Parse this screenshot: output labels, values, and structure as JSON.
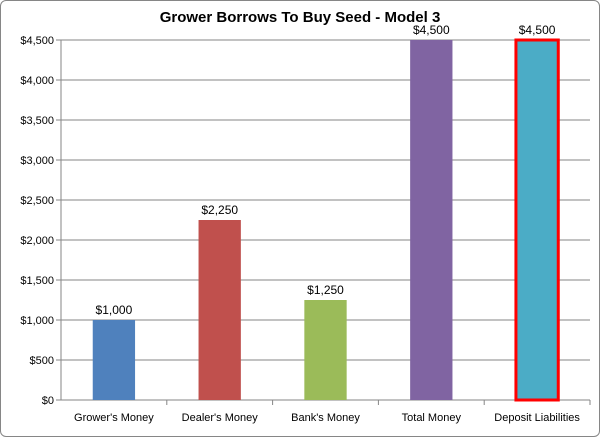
{
  "chart_data": {
    "type": "bar",
    "title": "Grower Borrows To Buy Seed - Model 3",
    "categories": [
      "Grower's Money",
      "Dealer's Money",
      "Bank's Money",
      "Total Money",
      "Deposit Liabilities"
    ],
    "values": [
      1000,
      2250,
      1250,
      4500,
      4500
    ],
    "data_labels": [
      "$1,000",
      "$2,250",
      "$1,250",
      "$4,500",
      "$4,500"
    ],
    "bar_colors": [
      "#4f81bd",
      "#c0504d",
      "#9bbb59",
      "#8064a2",
      "#4bacc6"
    ],
    "highlight": {
      "index": 4,
      "outline_color": "#ff0000"
    },
    "ylim": [
      0,
      4500
    ],
    "yticks": [
      0,
      500,
      1000,
      1500,
      2000,
      2500,
      3000,
      3500,
      4000,
      4500
    ],
    "ytick_labels": [
      "$0",
      "$500",
      "$1,000",
      "$1,500",
      "$2,000",
      "$2,500",
      "$3,000",
      "$3,500",
      "$4,000",
      "$4,500"
    ],
    "grid": true,
    "gridline_color": "#868686",
    "legend": "none",
    "xlabel": "",
    "ylabel": ""
  }
}
